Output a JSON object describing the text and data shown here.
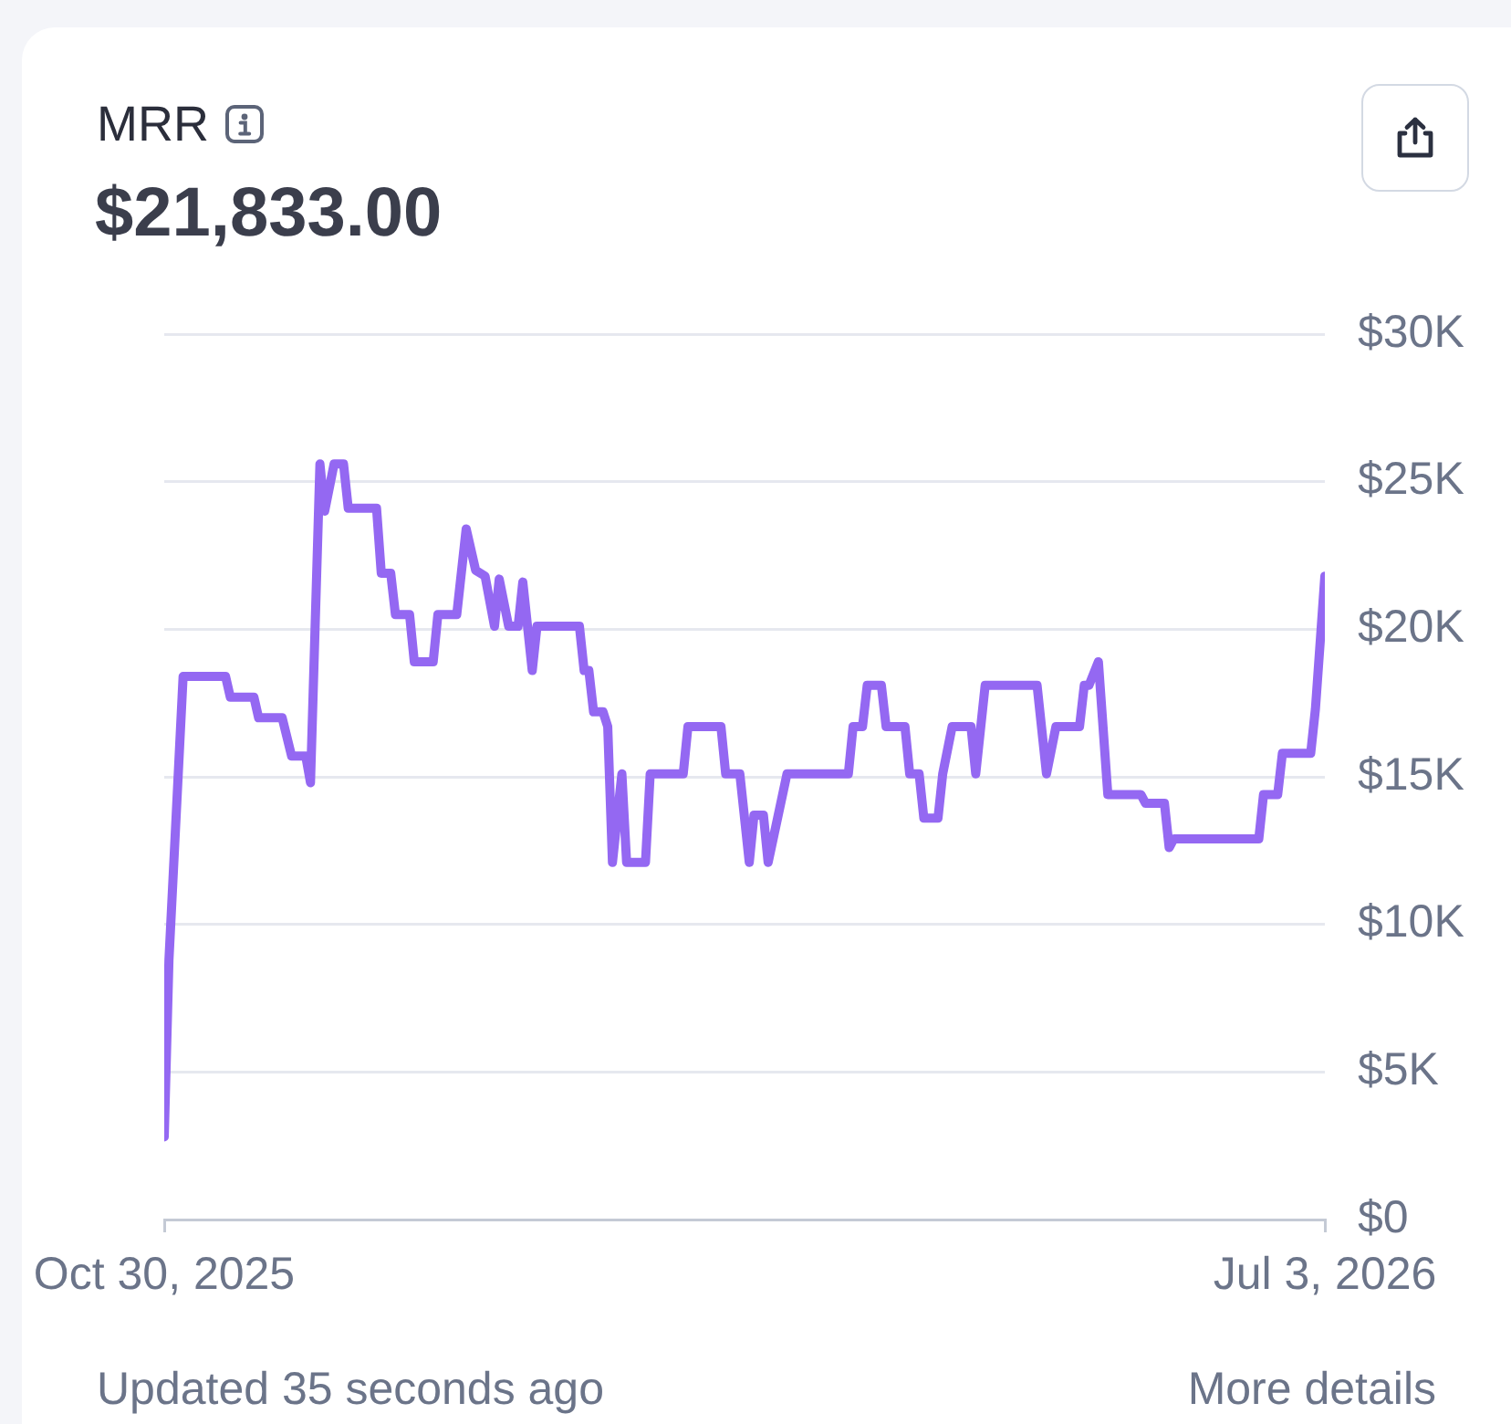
{
  "chart_data": {
    "type": "line",
    "title": "MRR",
    "subtitle": "$21,833.00",
    "annotations": [
      "Updated 35 seconds ago",
      "More details"
    ],
    "x": [
      "2025-10-30",
      "2025-10-31",
      "2025-11-03",
      "2025-11-12",
      "2025-11-13",
      "2025-11-18",
      "2025-11-19",
      "2025-11-24",
      "2025-11-26",
      "2025-11-29",
      "2025-11-30",
      "2025-12-02",
      "2025-12-03",
      "2025-12-05",
      "2025-12-07",
      "2025-12-08",
      "2025-12-14",
      "2025-12-15",
      "2025-12-17",
      "2025-12-18",
      "2025-12-21",
      "2025-12-22",
      "2025-12-26",
      "2025-12-27",
      "2025-12-31",
      "2026-01-02",
      "2026-01-04",
      "2026-01-06",
      "2026-01-08",
      "2026-01-09",
      "2026-01-11",
      "2026-01-13",
      "2026-01-14",
      "2026-01-16",
      "2026-01-17",
      "2026-01-26",
      "2026-01-27",
      "2026-01-28",
      "2026-01-29",
      "2026-01-31",
      "2026-02-01",
      "2026-02-02",
      "2026-02-04",
      "2026-02-05",
      "2026-02-09",
      "2026-02-10",
      "2026-02-17",
      "2026-02-18",
      "2026-02-25",
      "2026-02-26",
      "2026-03-01",
      "2026-03-03",
      "2026-03-04",
      "2026-03-06",
      "2026-03-07",
      "2026-03-09",
      "2026-03-11",
      "2026-03-24",
      "2026-03-25",
      "2026-03-27",
      "2026-03-28",
      "2026-03-31",
      "2026-04-01",
      "2026-04-05",
      "2026-04-06",
      "2026-04-08",
      "2026-04-09",
      "2026-04-12",
      "2026-04-13",
      "2026-04-15",
      "2026-04-19",
      "2026-04-20",
      "2026-04-22",
      "2026-05-03",
      "2026-05-05",
      "2026-05-07",
      "2026-05-12",
      "2026-05-13",
      "2026-05-14",
      "2026-05-16",
      "2026-05-18",
      "2026-05-25",
      "2026-05-26",
      "2026-05-30",
      "2026-05-31",
      "2026-06-01",
      "2026-06-19",
      "2026-06-20",
      "2026-06-23",
      "2026-06-24",
      "2026-06-30",
      "2026-07-01",
      "2026-07-03"
    ],
    "values": [
      2800,
      8800,
      18400,
      18400,
      17700,
      17700,
      17000,
      17000,
      15700,
      15700,
      14800,
      25600,
      24000,
      25600,
      25600,
      24100,
      24100,
      21900,
      21900,
      20500,
      20500,
      18900,
      18900,
      20500,
      20500,
      23400,
      22000,
      21800,
      20100,
      21700,
      20100,
      20100,
      21600,
      18600,
      20100,
      20100,
      18600,
      18600,
      17200,
      17200,
      16700,
      12100,
      15100,
      12100,
      12100,
      15100,
      15100,
      16700,
      16700,
      15100,
      15100,
      12100,
      13700,
      13700,
      12100,
      13600,
      15100,
      15100,
      16700,
      16700,
      18100,
      18100,
      16700,
      16700,
      15100,
      15100,
      13600,
      13600,
      15100,
      16700,
      16700,
      15100,
      18100,
      18100,
      15100,
      16700,
      16700,
      18100,
      18100,
      18900,
      14400,
      14400,
      14100,
      14100,
      12600,
      12900,
      12900,
      14400,
      14400,
      15800,
      15800,
      17300,
      21800
    ],
    "color": "#9468f2",
    "xlim": [
      "2025-10-30",
      "2026-07-03"
    ],
    "xticks": [
      {
        "value": "2025-10-30",
        "label": "Oct 30, 2025"
      },
      {
        "value": "2026-07-03",
        "label": "Jul 3, 2026"
      }
    ],
    "ylim": [
      0,
      30000
    ],
    "yticks": [
      {
        "value": 0,
        "label": "$0"
      },
      {
        "value": 5000,
        "label": "$5K"
      },
      {
        "value": 10000,
        "label": "$10K"
      },
      {
        "value": 15000,
        "label": "$15K"
      },
      {
        "value": 20000,
        "label": "$20K"
      },
      {
        "value": 25000,
        "label": "$25K"
      },
      {
        "value": 30000,
        "label": "$30K"
      }
    ],
    "grid": "y",
    "marker": "none",
    "line_style": "solid"
  }
}
